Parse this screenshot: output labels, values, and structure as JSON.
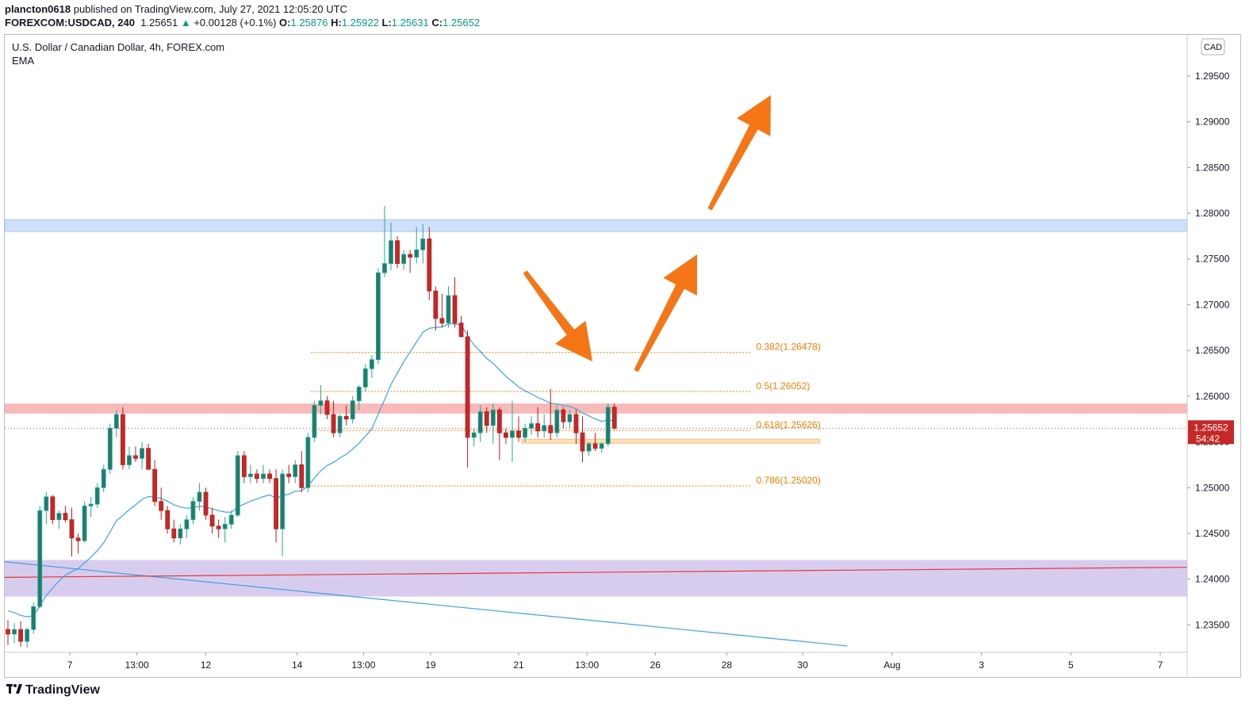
{
  "header": {
    "author": "plancton0618",
    "published_text": "published on TradingView.com, July 27, 2021 12:05:20 UTC",
    "symbol": "FOREXCOM:USDCAD, 240",
    "last": "1.25651",
    "change_arrow": "▲",
    "change": "+0.00128 (+0.1%)",
    "o_label": "O:",
    "o": "1.25876",
    "h_label": "H:",
    "h": "1.25922",
    "l_label": "L:",
    "l": "1.25631",
    "c_label": "C:",
    "c": "1.25652"
  },
  "legend": {
    "title": "U.S. Dollar / Canadian Dollar, 4h, FOREX.com",
    "indicator": "EMA"
  },
  "currency_button": "CAD",
  "price_badge": {
    "price": "1.25652",
    "countdown": "54:42"
  },
  "footer": {
    "brand": "TradingView",
    "logo_icon": "tradingview-logo-icon"
  },
  "colors": {
    "up": "#26a69a",
    "up_fill": "#1e7d6b",
    "down": "#b71c1c",
    "down_fill": "#c62828",
    "ema": "#3ba2e3",
    "fib": "#f57c00",
    "arrow": "#f57616",
    "zone_top": "#cfe0fb",
    "zone_mid": "#f8b9b9",
    "zone_bottom": "#d8ccee",
    "zone_fib": "#fde0b8",
    "trend_blue": "#3ba2e3",
    "trend_red": "#e53935"
  },
  "chart_data": {
    "type": "candlestick",
    "title": "U.S. Dollar / Canadian Dollar, 4h, FOREX.com",
    "ylim": [
      1.232,
      1.2995
    ],
    "y_ticks": [
      1.295,
      1.29,
      1.285,
      1.28,
      1.275,
      1.27,
      1.265,
      1.26,
      1.255,
      1.25,
      1.245,
      1.24,
      1.235
    ],
    "y_tick_labels": [
      "1.29500",
      "1.29000",
      "1.28500",
      "1.28000",
      "1.27500",
      "1.27000",
      "1.26500",
      "1.26000",
      "1.25500",
      "1.25000",
      "1.24500",
      "1.24000",
      "1.23500"
    ],
    "x_tick_labels": [
      "7",
      "13:00",
      "12",
      "14",
      "13:00",
      "19",
      "21",
      "13:00",
      "26",
      "28",
      "30",
      "Aug",
      "3",
      "5",
      "7"
    ],
    "x_tick_bars": [
      9.7,
      20.2,
      31,
      45.3,
      55.7,
      66.2,
      80,
      90.7,
      101.4,
      112.6,
      124.5,
      138.5,
      152.5,
      166.5,
      180.5
    ],
    "bar_count_span": 185,
    "candles": [
      [
        1.2345,
        1.2355,
        1.2328,
        1.234
      ],
      [
        1.234,
        1.2352,
        1.233,
        1.2345
      ],
      [
        1.2345,
        1.2354,
        1.2326,
        1.2332
      ],
      [
        1.2332,
        1.2347,
        1.2325,
        1.2345
      ],
      [
        1.2345,
        1.2375,
        1.234,
        1.237
      ],
      [
        1.237,
        1.248,
        1.2368,
        1.2475
      ],
      [
        1.2475,
        1.2495,
        1.246,
        1.249
      ],
      [
        1.249,
        1.2492,
        1.246,
        1.2465
      ],
      [
        1.2465,
        1.2475,
        1.2455,
        1.2472
      ],
      [
        1.2472,
        1.248,
        1.2462,
        1.2465
      ],
      [
        1.2465,
        1.2478,
        1.2425,
        1.2445
      ],
      [
        1.2445,
        1.245,
        1.2428,
        1.2442
      ],
      [
        1.2442,
        1.2485,
        1.244,
        1.248
      ],
      [
        1.248,
        1.249,
        1.2468,
        1.2482
      ],
      [
        1.2482,
        1.2505,
        1.2478,
        1.25
      ],
      [
        1.25,
        1.2525,
        1.2495,
        1.252
      ],
      [
        1.252,
        1.257,
        1.2515,
        1.2565
      ],
      [
        1.2565,
        1.2585,
        1.2555,
        1.258
      ],
      [
        1.258,
        1.2588,
        1.252,
        1.2525
      ],
      [
        1.2525,
        1.2545,
        1.252,
        1.2535
      ],
      [
        1.2535,
        1.2545,
        1.2528,
        1.2532
      ],
      [
        1.2532,
        1.255,
        1.252,
        1.2543
      ],
      [
        1.2543,
        1.2548,
        1.2525,
        1.252
      ],
      [
        1.252,
        1.253,
        1.248,
        1.2485
      ],
      [
        1.2485,
        1.25,
        1.2465,
        1.2475
      ],
      [
        1.2475,
        1.248,
        1.245,
        1.2455
      ],
      [
        1.2455,
        1.2465,
        1.244,
        1.2445
      ],
      [
        1.2445,
        1.246,
        1.2438,
        1.2455
      ],
      [
        1.2455,
        1.247,
        1.2445,
        1.2465
      ],
      [
        1.2465,
        1.249,
        1.246,
        1.2485
      ],
      [
        1.2485,
        1.2505,
        1.2475,
        1.2495
      ],
      [
        1.2495,
        1.25,
        1.2465,
        1.247
      ],
      [
        1.247,
        1.2478,
        1.245,
        1.2458
      ],
      [
        1.2458,
        1.2465,
        1.2445,
        1.2455
      ],
      [
        1.2455,
        1.2468,
        1.244,
        1.246
      ],
      [
        1.246,
        1.2475,
        1.2455,
        1.247
      ],
      [
        1.247,
        1.254,
        1.2468,
        1.2535
      ],
      [
        1.2535,
        1.254,
        1.2505,
        1.2512
      ],
      [
        1.2512,
        1.2525,
        1.2505,
        1.2515
      ],
      [
        1.2515,
        1.252,
        1.2505,
        1.251
      ],
      [
        1.251,
        1.2525,
        1.2505,
        1.2515
      ],
      [
        1.2515,
        1.252,
        1.2505,
        1.251
      ],
      [
        1.251,
        1.252,
        1.244,
        1.2455
      ],
      [
        1.2455,
        1.252,
        1.2425,
        1.2515
      ],
      [
        1.2515,
        1.2525,
        1.2505,
        1.2512
      ],
      [
        1.2512,
        1.253,
        1.2505,
        1.2525
      ],
      [
        1.2525,
        1.254,
        1.2495,
        1.25
      ],
      [
        1.25,
        1.256,
        1.2495,
        1.2555
      ],
      [
        1.2555,
        1.2595,
        1.255,
        1.259
      ],
      [
        1.259,
        1.2612,
        1.258,
        1.2595
      ],
      [
        1.2595,
        1.26,
        1.2575,
        1.258
      ],
      [
        1.258,
        1.2595,
        1.2555,
        1.256
      ],
      [
        1.256,
        1.258,
        1.2555,
        1.2578
      ],
      [
        1.2578,
        1.259,
        1.2568,
        1.2575
      ],
      [
        1.2575,
        1.26,
        1.257,
        1.2595
      ],
      [
        1.2595,
        1.2612,
        1.2585,
        1.261
      ],
      [
        1.261,
        1.2635,
        1.2605,
        1.263
      ],
      [
        1.263,
        1.2645,
        1.262,
        1.264
      ],
      [
        1.264,
        1.274,
        1.2635,
        1.2735
      ],
      [
        1.2735,
        1.2808,
        1.273,
        1.2745
      ],
      [
        1.2745,
        1.279,
        1.2738,
        1.277
      ],
      [
        1.277,
        1.2775,
        1.274,
        1.2745
      ],
      [
        1.2745,
        1.276,
        1.2738,
        1.2755
      ],
      [
        1.2755,
        1.276,
        1.2735,
        1.2752
      ],
      [
        1.2752,
        1.2785,
        1.2745,
        1.276
      ],
      [
        1.276,
        1.2788,
        1.2745,
        1.2772
      ],
      [
        1.2772,
        1.2785,
        1.2705,
        1.2715
      ],
      [
        1.2715,
        1.272,
        1.2672,
        1.2685
      ],
      [
        1.2685,
        1.2712,
        1.2675,
        1.268
      ],
      [
        1.268,
        1.272,
        1.2675,
        1.271
      ],
      [
        1.271,
        1.273,
        1.2675,
        1.268
      ],
      [
        1.268,
        1.2688,
        1.2665,
        1.2665
      ],
      [
        1.2665,
        1.2672,
        1.2522,
        1.2555
      ],
      [
        1.2555,
        1.2565,
        1.2545,
        1.256
      ],
      [
        1.256,
        1.259,
        1.255,
        1.2583
      ],
      [
        1.2583,
        1.2588,
        1.256,
        1.2568
      ],
      [
        1.2568,
        1.2592,
        1.2548,
        1.2585
      ],
      [
        1.2585,
        1.2588,
        1.253,
        1.256
      ],
      [
        1.256,
        1.2565,
        1.2548,
        1.2555
      ],
      [
        1.2555,
        1.2595,
        1.2528,
        1.2562
      ],
      [
        1.2562,
        1.2578,
        1.255,
        1.2555
      ],
      [
        1.2555,
        1.257,
        1.255,
        1.2565
      ],
      [
        1.2565,
        1.2578,
        1.2558,
        1.257
      ],
      [
        1.257,
        1.2588,
        1.2555,
        1.2562
      ],
      [
        1.2562,
        1.258,
        1.2555,
        1.2568
      ],
      [
        1.2568,
        1.2608,
        1.2552,
        1.256
      ],
      [
        1.256,
        1.259,
        1.2555,
        1.2585
      ],
      [
        1.2585,
        1.2588,
        1.2565,
        1.2572
      ],
      [
        1.2572,
        1.2585,
        1.2565,
        1.258
      ],
      [
        1.258,
        1.2585,
        1.2548,
        1.256
      ],
      [
        1.256,
        1.2578,
        1.2528,
        1.254
      ],
      [
        1.254,
        1.255,
        1.2535,
        1.2548
      ],
      [
        1.2548,
        1.256,
        1.254,
        1.2543
      ],
      [
        1.2543,
        1.255,
        1.2538,
        1.2548
      ],
      [
        1.2548,
        1.2592,
        1.2545,
        1.2588
      ],
      [
        1.2588,
        1.2592,
        1.2563,
        1.2565
      ]
    ],
    "ema_start": 1.2368,
    "fib_levels": [
      {
        "label": "0.382(1.26478)",
        "value": 1.26478
      },
      {
        "label": "0.5(1.26052)",
        "value": 1.26052
      },
      {
        "label": "0.618(1.25626)",
        "value": 1.25626
      },
      {
        "label": "0.786(1.25020)",
        "value": 1.2502
      }
    ],
    "zones": [
      {
        "name": "resistance-zone",
        "from": 1.278,
        "to": 1.2793
      },
      {
        "name": "pivot-zone",
        "from": 1.2581,
        "to": 1.2592
      },
      {
        "name": "support-zone",
        "from": 1.2381,
        "to": 1.2421
      },
      {
        "name": "fib-zone",
        "from": 1.2549,
        "to": 1.2553
      }
    ],
    "trendlines": [
      {
        "name": "blue-trendline",
        "start": [
          0,
          1.2419
        ],
        "end": [
          131.5,
          1.2327
        ]
      },
      {
        "name": "red-horizontal-line",
        "start": [
          0,
          1.2402
        ],
        "end": [
          185,
          1.2413
        ]
      }
    ]
  }
}
